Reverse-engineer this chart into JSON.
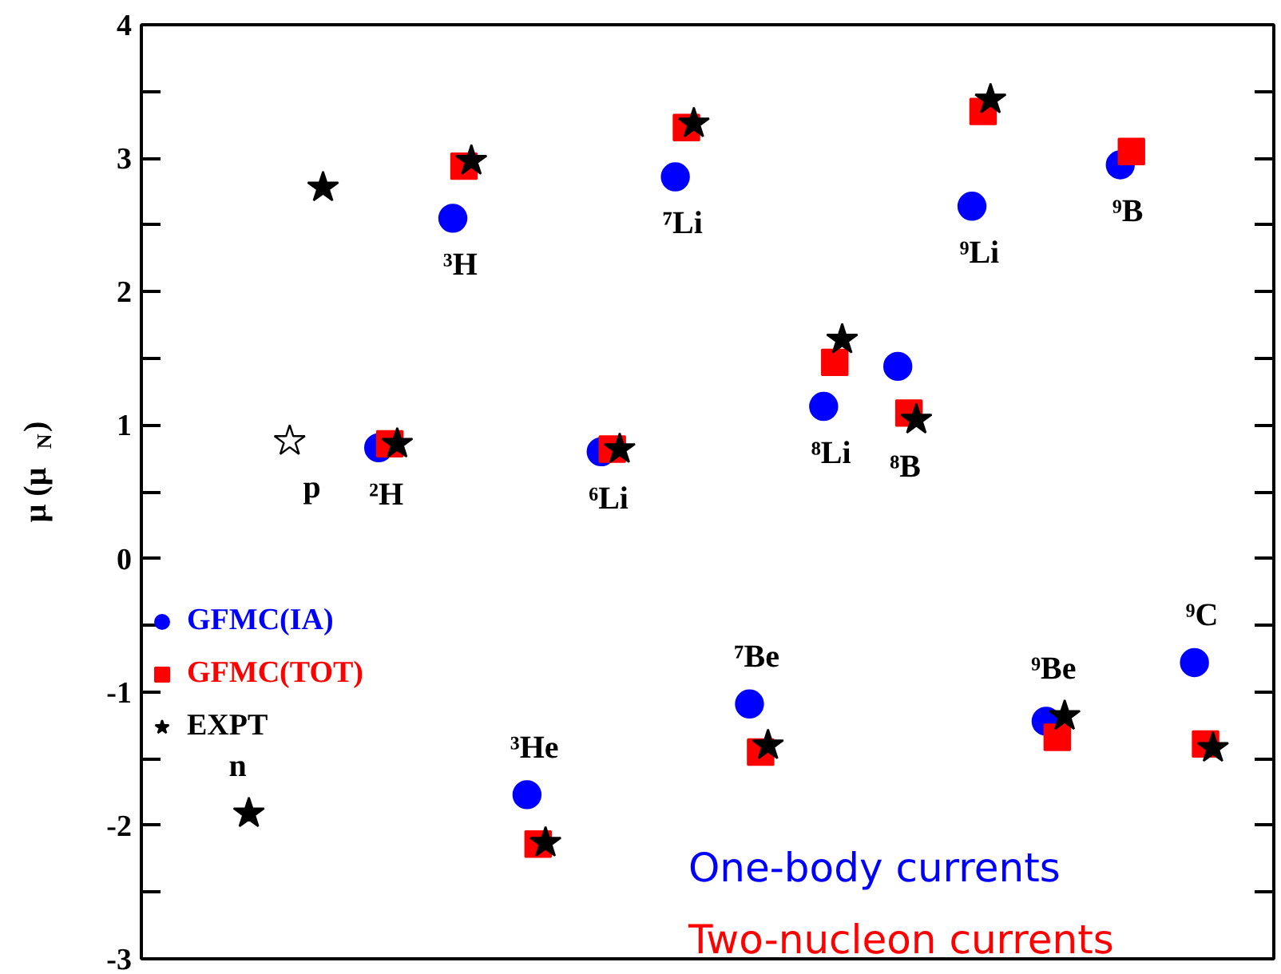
{
  "chart_data": {
    "type": "scatter",
    "ylabel": "μ (μ$_{N}$)",
    "categories": [
      "n",
      "p",
      "²H",
      "³H",
      "³He",
      "⁶Li",
      "⁷Li",
      "⁷Be",
      "⁸Li",
      "⁸B",
      "⁹Li",
      "⁹Be",
      "⁹B",
      "⁹C"
    ],
    "ylim": [
      -3,
      4
    ],
    "yticks": [
      -3,
      {
        "value": -2.5,
        "label": null
      },
      -2,
      {
        "value": -1.5,
        "label": null
      },
      -1,
      {
        "value": -0.5,
        "label": null
      },
      0,
      {
        "value": 0.5,
        "label": null
      },
      1,
      {
        "value": 1.5,
        "label": null
      },
      2,
      {
        "value": 2.5,
        "label": null
      },
      3,
      {
        "value": 3.5,
        "label": null
      },
      4
    ],
    "grid": false,
    "legend": "left",
    "series": [
      {
        "name": "GFMC(IA)",
        "color": "#0000ff",
        "marker": "circle",
        "values": [
          null,
          null,
          0.83,
          2.55,
          -1.77,
          0.8,
          2.86,
          -1.09,
          1.14,
          1.44,
          2.64,
          -1.22,
          2.95,
          -0.78
        ]
      },
      {
        "name": "GFMC(TOT)",
        "color": "#ff0000",
        "marker": "square",
        "values": [
          null,
          null,
          0.86,
          2.94,
          -2.14,
          0.82,
          3.23,
          -1.45,
          1.47,
          1.09,
          3.35,
          -1.34,
          3.05,
          -1.39
        ]
      },
      {
        "name": "EXPT",
        "color": "#000000",
        "marker": "star",
        "values": [
          -1.91,
          2.78,
          0.86,
          2.98,
          -2.13,
          0.82,
          3.26,
          -1.4,
          1.64,
          1.04,
          3.44,
          -1.18,
          null,
          -1.42
        ]
      },
      {
        "color": "#ffffff",
        "marker": "star",
        "values": [
          null,
          0.88,
          null,
          null,
          null,
          null,
          null,
          null,
          null,
          null,
          null,
          null,
          null,
          null
        ]
      }
    ],
    "annotations": [
      "One-body currents",
      "Two-nucleon currents"
    ]
  }
}
